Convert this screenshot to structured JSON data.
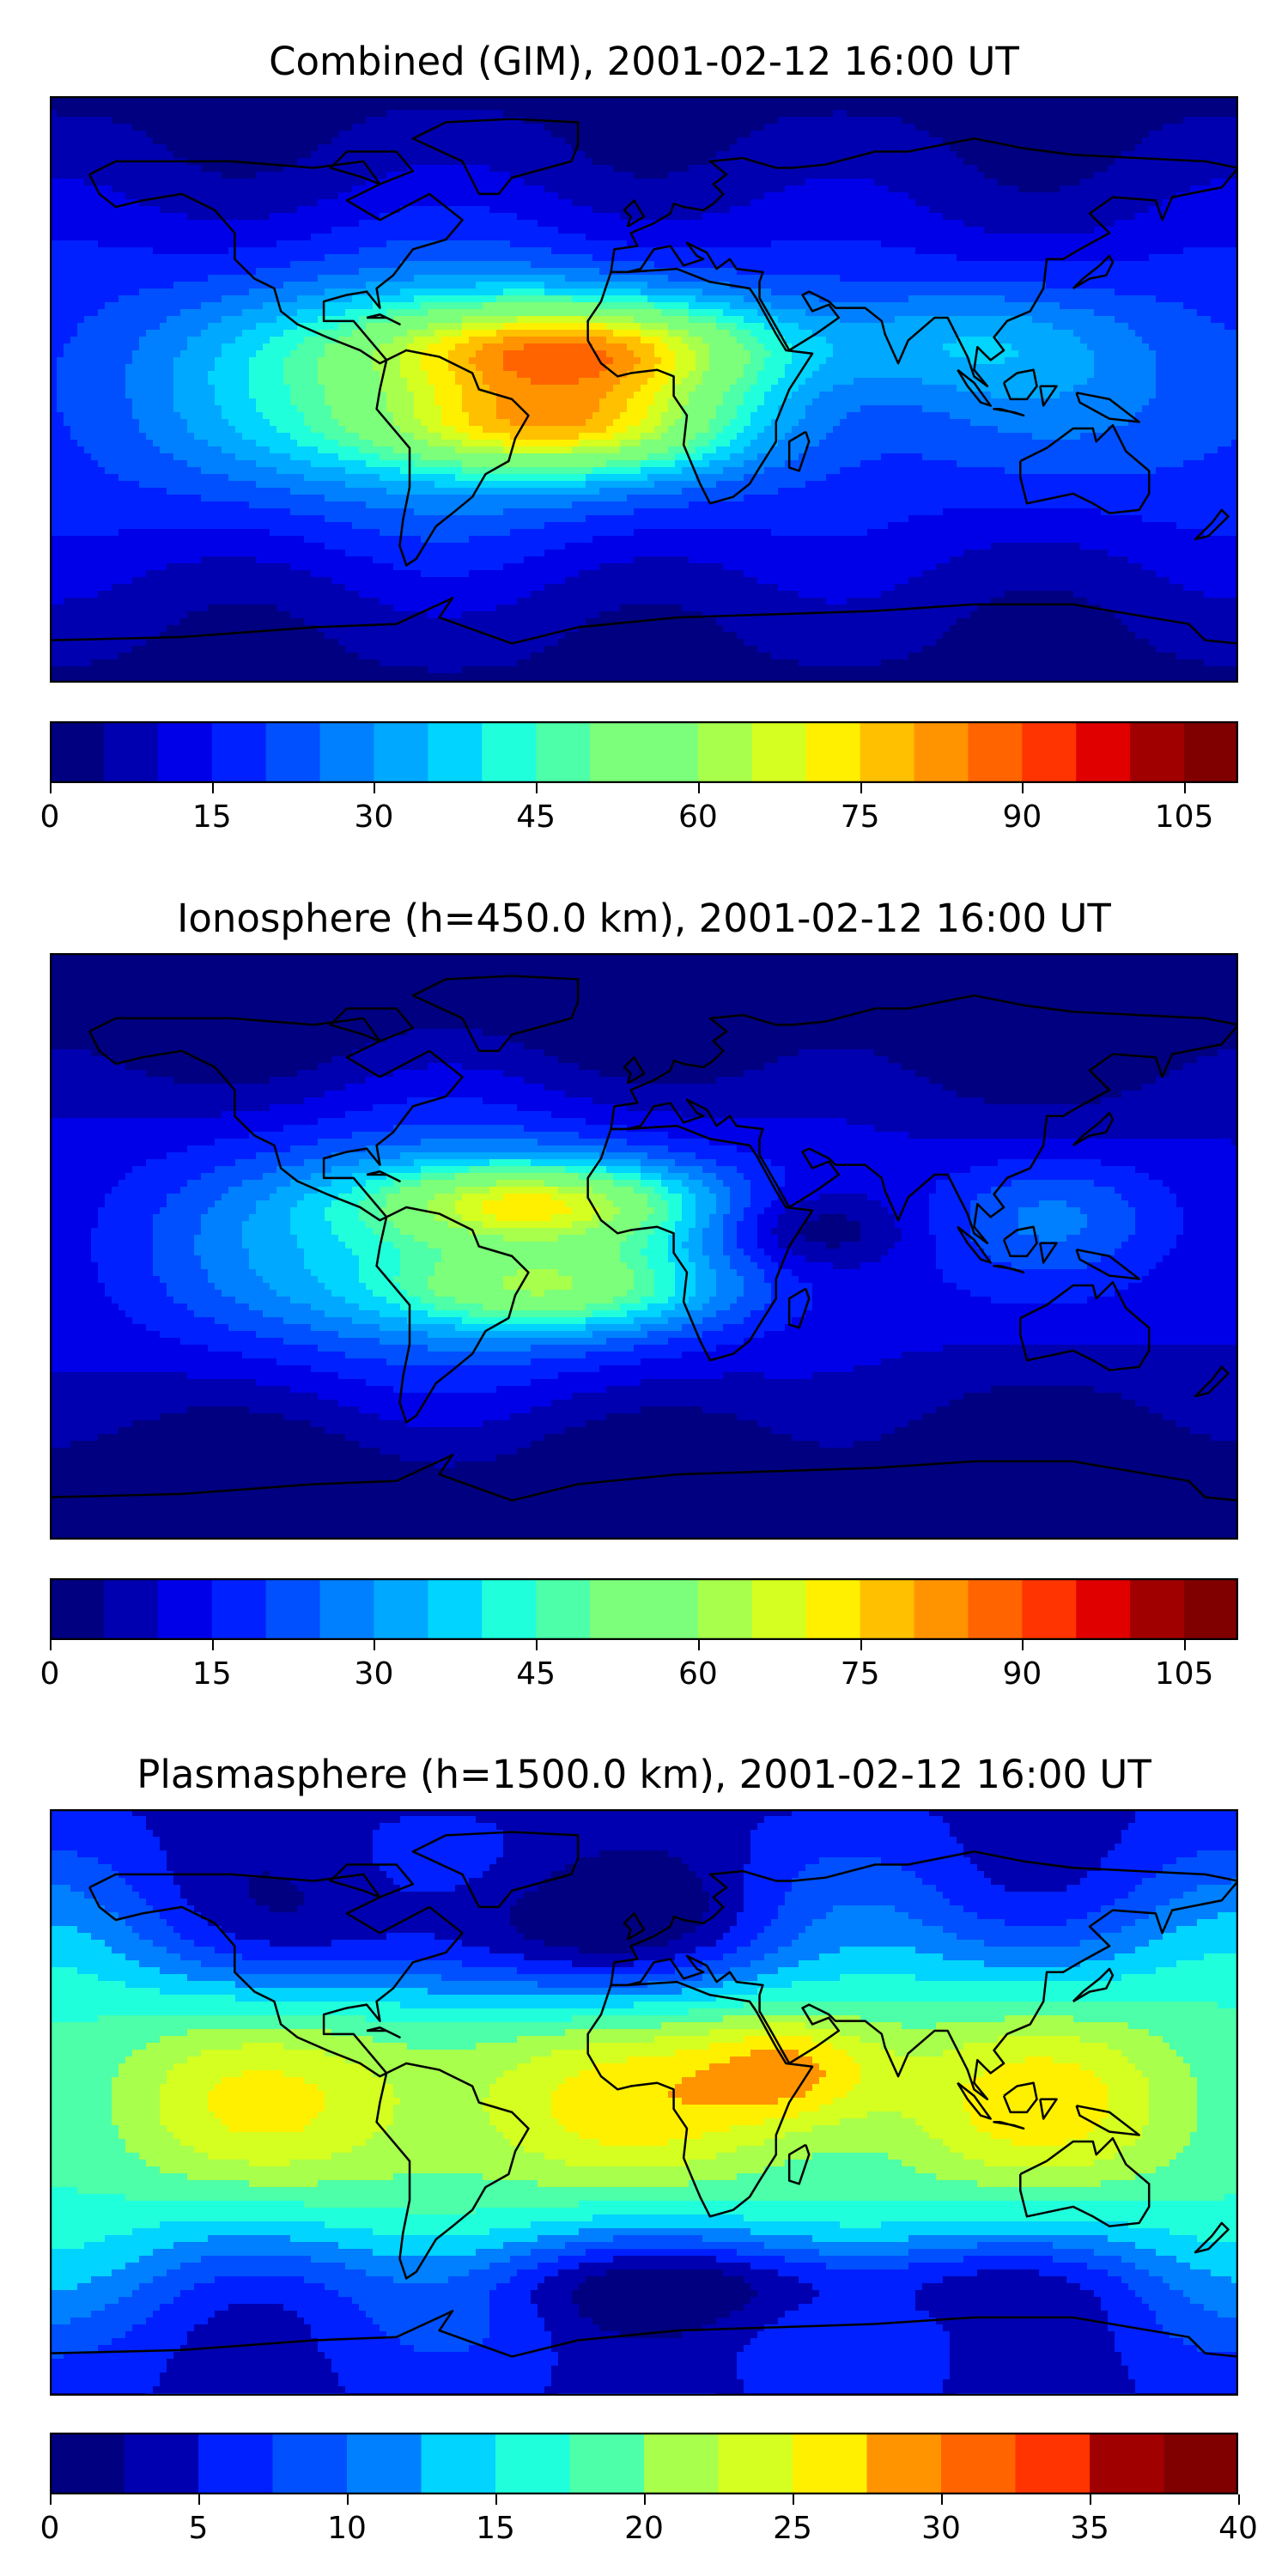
{
  "panels": [
    {
      "title": "Combined (GIM), 2001-02-12 16:00 UT",
      "colorbar": {
        "min": 0,
        "max": 110,
        "step": 5,
        "tick_labels": [
          "0",
          "15",
          "30",
          "45",
          "60",
          "75",
          "90",
          "105"
        ]
      },
      "features": [
        {
          "lon": -25,
          "lat": 12,
          "v": 50,
          "sx": 45,
          "sy": 11
        },
        {
          "lon": -30,
          "lat": -12,
          "v": 40,
          "sx": 40,
          "sy": 10
        },
        {
          "lon": -60,
          "lat": 0,
          "v": 20,
          "sx": 60,
          "sy": 30
        },
        {
          "lon": 95,
          "lat": 15,
          "v": 12,
          "sx": 30,
          "sy": 12
        },
        {
          "lon": 150,
          "lat": 0,
          "v": 5,
          "sx": 40,
          "sy": 25
        }
      ],
      "base": 12
    },
    {
      "title": "Ionosphere  (h=450.0 km), 2001-02-12 16:00 UT",
      "colorbar": {
        "min": 0,
        "max": 110,
        "step": 5,
        "tick_labels": [
          "0",
          "15",
          "30",
          "45",
          "60",
          "75",
          "90",
          "105"
        ]
      },
      "features": [
        {
          "lon": -35,
          "lat": 13,
          "v": 42,
          "sx": 35,
          "sy": 9
        },
        {
          "lon": -30,
          "lat": -13,
          "v": 30,
          "sx": 35,
          "sy": 9
        },
        {
          "lon": -60,
          "lat": 0,
          "v": 22,
          "sx": 55,
          "sy": 30
        },
        {
          "lon": 50,
          "lat": 5,
          "v": -12,
          "sx": 20,
          "sy": 8
        },
        {
          "lon": 125,
          "lat": 10,
          "v": 10,
          "sx": 25,
          "sy": 12
        }
      ],
      "base": 6
    },
    {
      "title": "Plasmasphere (h=1500.0 km), 2001-02-12 16:00 UT",
      "colorbar": {
        "min": 0,
        "max": 40,
        "step": 2.5,
        "tick_labels": [
          "0",
          "5",
          "10",
          "15",
          "20",
          "25",
          "30",
          "35",
          "40"
        ]
      },
      "features": [
        {
          "lon": 45,
          "lat": 10,
          "v": 9,
          "sx": 20,
          "sy": 12
        },
        {
          "lon": -50,
          "lat": 0,
          "v": 4,
          "sx": 60,
          "sy": 22
        },
        {
          "lon": 120,
          "lat": 0,
          "v": 3,
          "sx": 40,
          "sy": 22
        },
        {
          "lon": -40,
          "lat": 50,
          "v": -10,
          "sx": 60,
          "sy": 15
        },
        {
          "lon": 30,
          "lat": -55,
          "v": -8,
          "sx": 70,
          "sy": 10
        }
      ],
      "base": 13
    }
  ],
  "jet_colors": [
    "#000080",
    "#0000b0",
    "#0000e8",
    "#0020ff",
    "#0050ff",
    "#0080ff",
    "#00a8ff",
    "#00d4ff",
    "#20ffdc",
    "#4cffa8",
    "#7cff7a",
    "#a8ff4c",
    "#d4ff20",
    "#fff000",
    "#ffc000",
    "#ff9400",
    "#ff6400",
    "#ff3400",
    "#e00000",
    "#a00000",
    "#800000"
  ],
  "coastline_color": "#000000"
}
